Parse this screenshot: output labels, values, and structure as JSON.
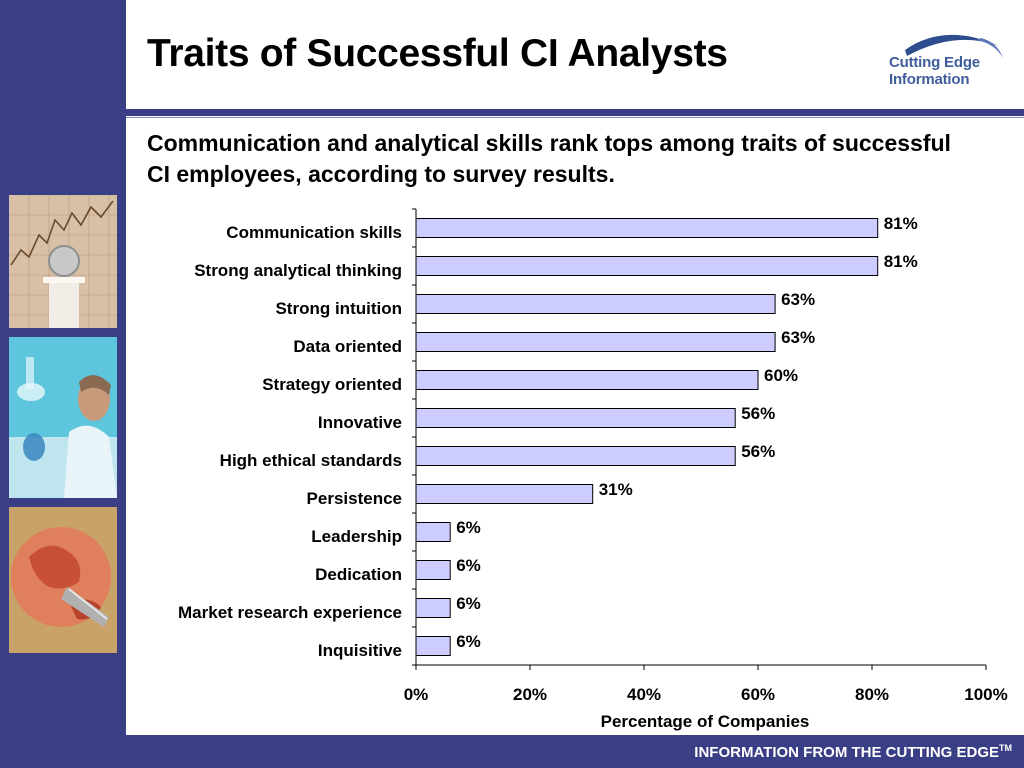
{
  "slide": {
    "title": "Traits of Successful CI Analysts",
    "subtitle": "Communication and analytical skills rank tops among traits of successful CI employees, according to survey results.",
    "footer": "INFORMATION FROM THE CUTTING EDGE",
    "footer_sup": "TM"
  },
  "logo": {
    "line1": "Cutting Edge",
    "line2": "Information"
  },
  "colors": {
    "sidebar": "#3a3f85",
    "bar_fill": "#ccccff",
    "bar_stroke": "#000000",
    "logo_text": "#3f5d9c"
  },
  "chart_data": {
    "type": "bar",
    "orientation": "horizontal",
    "categories": [
      "Communication skills",
      "Strong analytical thinking",
      "Strong intuition",
      "Data oriented",
      "Strategy oriented",
      "Innovative",
      "High ethical standards",
      "Persistence",
      "Leadership",
      "Dedication",
      "Market research experience",
      "Inquisitive"
    ],
    "values": [
      81,
      81,
      63,
      63,
      60,
      56,
      56,
      31,
      6,
      6,
      6,
      6
    ],
    "value_labels": [
      "81%",
      "81%",
      "63%",
      "63%",
      "60%",
      "56%",
      "56%",
      "31%",
      "6%",
      "6%",
      "6%",
      "6%"
    ],
    "xlim": [
      0,
      100
    ],
    "xticks": [
      0,
      20,
      40,
      60,
      80,
      100
    ],
    "xtick_labels": [
      "0%",
      "20%",
      "40%",
      "60%",
      "80%",
      "100%"
    ],
    "xlabel": "Percentage of Companies",
    "ylabel": "",
    "grid": false,
    "legend": "none"
  }
}
